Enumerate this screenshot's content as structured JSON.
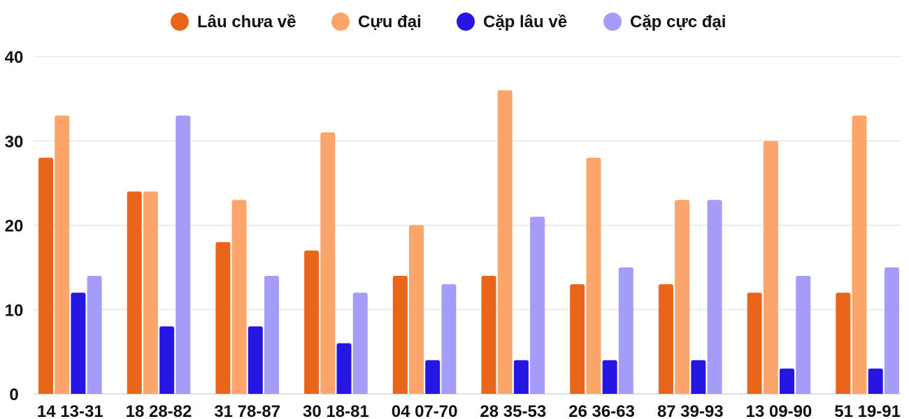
{
  "chart_data": {
    "type": "bar",
    "categories": [
      "14 13-31",
      "18 28-82",
      "31 78-87",
      "30 18-81",
      "04 07-70",
      "28 35-53",
      "26 36-63",
      "87 39-93",
      "13 09-90",
      "51 19-91"
    ],
    "series": [
      {
        "name": "Lâu chưa về",
        "color": "#e8651a",
        "values": [
          28,
          24,
          18,
          17,
          14,
          14,
          13,
          13,
          12,
          12
        ]
      },
      {
        "name": "Cựu đại",
        "color": "#fca56b",
        "values": [
          33,
          24,
          23,
          31,
          20,
          36,
          28,
          23,
          30,
          33
        ]
      },
      {
        "name": "Cặp lâu về",
        "color": "#2616e3",
        "values": [
          12,
          8,
          8,
          6,
          4,
          4,
          4,
          4,
          3,
          3
        ]
      },
      {
        "name": "Cặp cực đại",
        "color": "#a59cf9",
        "values": [
          14,
          33,
          14,
          12,
          13,
          21,
          15,
          23,
          14,
          15
        ]
      }
    ],
    "yticks": [
      0,
      10,
      20,
      30,
      40
    ],
    "ylim": [
      0,
      40
    ],
    "grid": true,
    "legend_position": "top-center",
    "title": "",
    "xlabel": "",
    "ylabel": ""
  }
}
